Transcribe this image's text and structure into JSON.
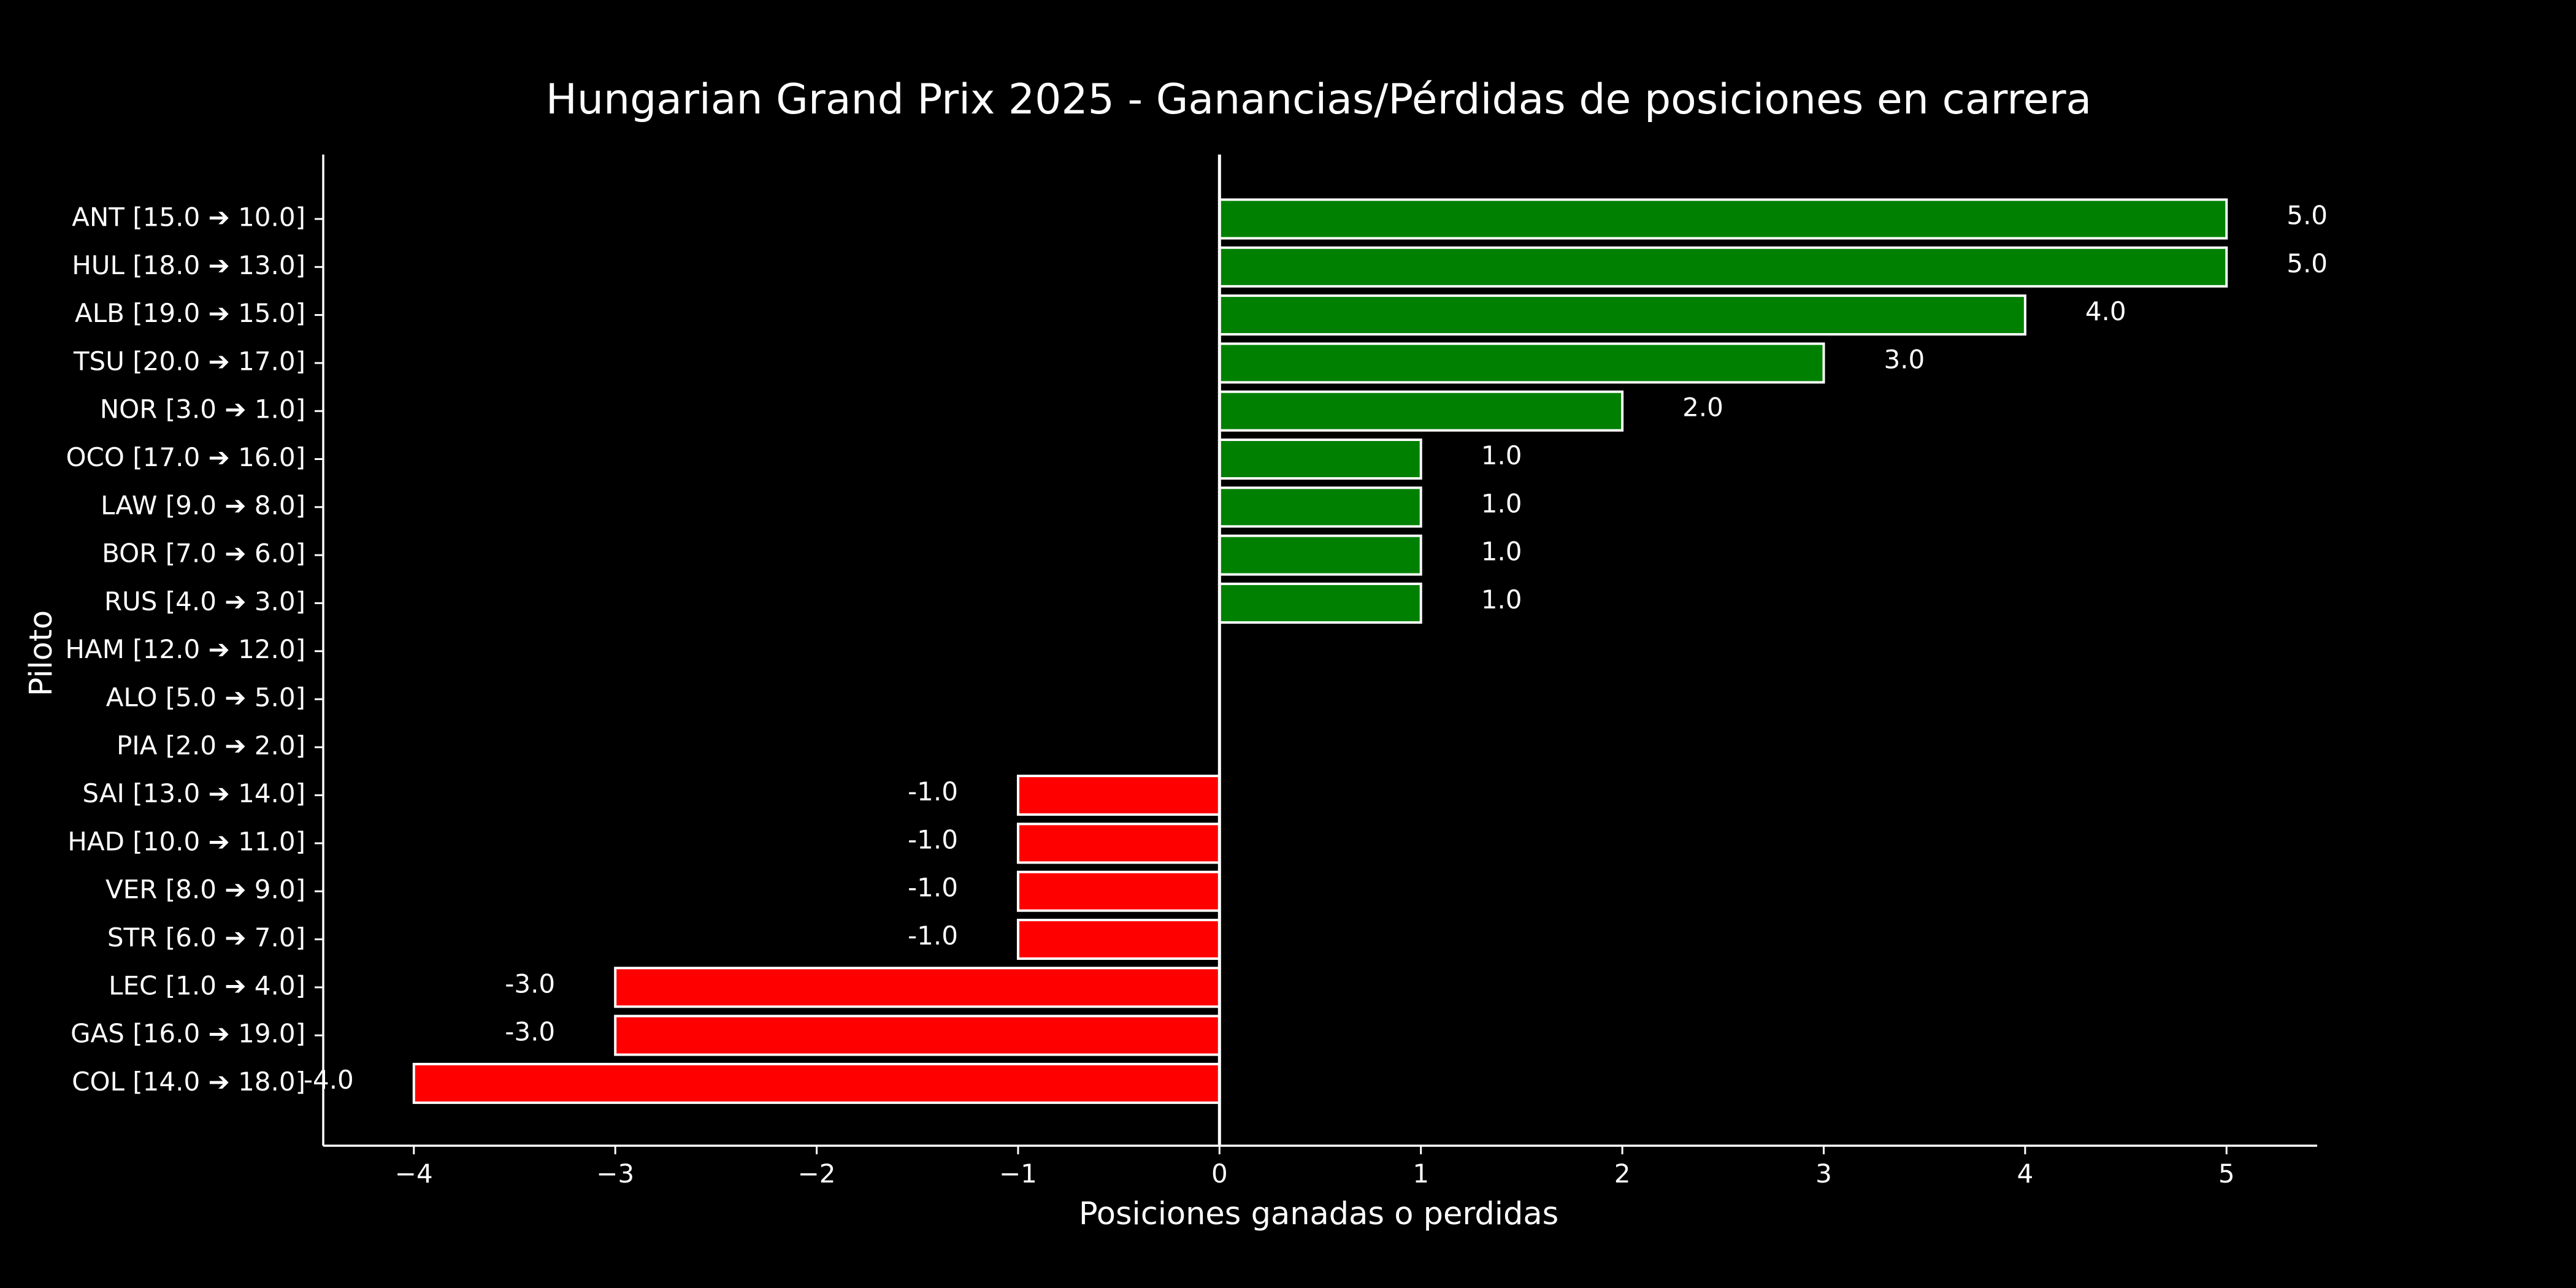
{
  "chart_data": {
    "type": "bar",
    "orientation": "horizontal",
    "title": "Hungarian Grand Prix 2025 - Ganancias/Pérdidas de posiciones en carrera",
    "xlabel": "Posiciones ganadas o perdidas",
    "ylabel": "Piloto",
    "xlim": [
      -4.45,
      5.45
    ],
    "xticks": [
      -4,
      -3,
      -2,
      -1,
      0,
      1,
      2,
      3,
      4,
      5
    ],
    "xtick_labels": [
      "−4",
      "−3",
      "−2",
      "−1",
      "0",
      "1",
      "2",
      "3",
      "4",
      "5"
    ],
    "categories": [
      "ANT [15.0 ➔ 10.0]",
      "HUL [18.0 ➔ 13.0]",
      "ALB [19.0 ➔ 15.0]",
      "TSU [20.0 ➔ 17.0]",
      "NOR [3.0 ➔ 1.0]",
      "OCO [17.0 ➔ 16.0]",
      "LAW [9.0 ➔ 8.0]",
      "BOR [7.0 ➔ 6.0]",
      "RUS [4.0 ➔ 3.0]",
      "HAM [12.0 ➔ 12.0]",
      "ALO [5.0 ➔ 5.0]",
      "PIA [2.0 ➔ 2.0]",
      "SAI [13.0 ➔ 14.0]",
      "HAD [10.0 ➔ 11.0]",
      "VER [8.0 ➔ 9.0]",
      "STR [6.0 ➔ 7.0]",
      "LEC [1.0 ➔ 4.0]",
      "GAS [16.0 ➔ 19.0]",
      "COL [14.0 ➔ 18.0]"
    ],
    "values": [
      5,
      5,
      4,
      3,
      2,
      1,
      1,
      1,
      1,
      0,
      0,
      0,
      -1,
      -1,
      -1,
      -1,
      -3,
      -3,
      -4
    ],
    "data_labels": [
      "5.0",
      "5.0",
      "4.0",
      "3.0",
      "2.0",
      "1.0",
      "1.0",
      "1.0",
      "1.0",
      "",
      "",
      "",
      "-1.0",
      "-1.0",
      "-1.0",
      "-1.0",
      "-3.0",
      "-3.0",
      "-4.0"
    ],
    "colors": {
      "gain": "#008000",
      "loss": "#ff0000",
      "background": "#000000",
      "foreground": "#ffffff"
    },
    "grid": false,
    "legend": "none"
  }
}
